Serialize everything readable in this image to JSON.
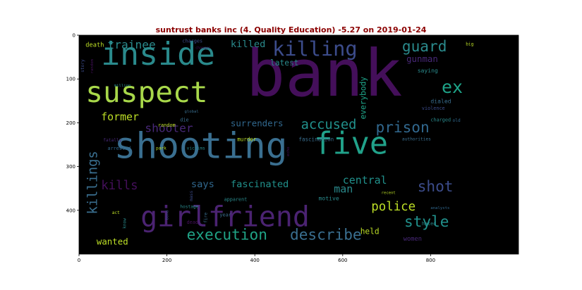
{
  "chart_data": {
    "type": "wordcloud",
    "title": "suntrust banks inc (4. Quality Education) -5.27 on 2019-01-24",
    "x_ticks": [
      "0",
      "200",
      "400",
      "600",
      "800"
    ],
    "y_ticks": [
      "0",
      "100",
      "200",
      "300",
      "400"
    ],
    "xlim": [
      0,
      1000
    ],
    "ylim": [
      500,
      0
    ],
    "words": [
      {
        "text": "bank",
        "x": 380,
        "y": 20,
        "size": 148,
        "color": "#440f5a"
      },
      {
        "text": "shooting",
        "x": 80,
        "y": 215,
        "size": 82,
        "color": "#3a6f90"
      },
      {
        "text": "inside",
        "x": 50,
        "y": 10,
        "size": 72,
        "color": "#2a8a8c"
      },
      {
        "text": "suspect",
        "x": 15,
        "y": 100,
        "size": 66,
        "color": "#a8d84a"
      },
      {
        "text": "girlfriend",
        "x": 140,
        "y": 385,
        "size": 64,
        "color": "#4b2372"
      },
      {
        "text": "five",
        "x": 535,
        "y": 215,
        "size": 70,
        "color": "#21a28a"
      },
      {
        "text": "killing",
        "x": 440,
        "y": 10,
        "size": 46,
        "color": "#3c4c8b"
      },
      {
        "text": "execution",
        "x": 245,
        "y": 440,
        "size": 34,
        "color": "#20a386"
      },
      {
        "text": "describe",
        "x": 480,
        "y": 440,
        "size": 34,
        "color": "#3a6f90"
      },
      {
        "text": "guard",
        "x": 735,
        "y": 10,
        "size": 34,
        "color": "#2a8a8c"
      },
      {
        "text": "ex",
        "x": 825,
        "y": 100,
        "size": 40,
        "color": "#1ea388"
      },
      {
        "text": "prison",
        "x": 675,
        "y": 195,
        "size": 34,
        "color": "#31688e"
      },
      {
        "text": "accused",
        "x": 505,
        "y": 190,
        "size": 30,
        "color": "#21918c"
      },
      {
        "text": "killings",
        "x": 20,
        "y": 265,
        "size": 30,
        "color": "#3a6f90",
        "rotate": true
      },
      {
        "text": "shot",
        "x": 770,
        "y": 330,
        "size": 34,
        "color": "#3c4c8b"
      },
      {
        "text": "style",
        "x": 740,
        "y": 410,
        "size": 34,
        "color": "#21918c"
      },
      {
        "text": "police",
        "x": 665,
        "y": 378,
        "size": 28,
        "color": "#bddf26"
      },
      {
        "text": "trainee",
        "x": 65,
        "y": 10,
        "size": 26,
        "color": "#2a8a8c"
      },
      {
        "text": "former",
        "x": 50,
        "y": 175,
        "size": 24,
        "color": "#bddf26"
      },
      {
        "text": "shooter",
        "x": 150,
        "y": 200,
        "size": 26,
        "color": "#482878"
      },
      {
        "text": "kills",
        "x": 50,
        "y": 330,
        "size": 28,
        "color": "#440f5a"
      },
      {
        "text": "central",
        "x": 600,
        "y": 320,
        "size": 24,
        "color": "#21918c"
      },
      {
        "text": "man",
        "x": 580,
        "y": 340,
        "size": 24,
        "color": "#2a8a8c"
      },
      {
        "text": "says",
        "x": 255,
        "y": 330,
        "size": 22,
        "color": "#31688e"
      },
      {
        "text": "fascinated",
        "x": 345,
        "y": 330,
        "size": 22,
        "color": "#21918c"
      },
      {
        "text": "surrenders",
        "x": 345,
        "y": 192,
        "size": 20,
        "color": "#31688e"
      },
      {
        "text": "killed",
        "x": 345,
        "y": 10,
        "size": 22,
        "color": "#2a8a8c"
      },
      {
        "text": "gunman",
        "x": 745,
        "y": 45,
        "size": 20,
        "color": "#482878"
      },
      {
        "text": "everybody",
        "x": 640,
        "y": 95,
        "size": 18,
        "color": "#1ea388",
        "rotate": true
      },
      {
        "text": "wanted",
        "x": 40,
        "y": 462,
        "size": 20,
        "color": "#bddf26"
      },
      {
        "text": "held",
        "x": 640,
        "y": 440,
        "size": 18,
        "color": "#bddf26"
      },
      {
        "text": "latest",
        "x": 435,
        "y": 55,
        "size": 18,
        "color": "#2a8a8c"
      },
      {
        "text": "women",
        "x": 738,
        "y": 458,
        "size": 14,
        "color": "#482878"
      },
      {
        "text": "death",
        "x": 15,
        "y": 15,
        "size": 14,
        "color": "#bddf26"
      },
      {
        "text": "saying",
        "x": 770,
        "y": 75,
        "size": 13,
        "color": "#2a8a8c"
      },
      {
        "text": "dialed",
        "x": 800,
        "y": 145,
        "size": 13,
        "color": "#3a6f90"
      },
      {
        "text": "violence",
        "x": 780,
        "y": 162,
        "size": 11,
        "color": "#3c4c8b"
      },
      {
        "text": "charged",
        "x": 800,
        "y": 188,
        "size": 11,
        "color": "#2a8a8c"
      },
      {
        "text": "authorities",
        "x": 735,
        "y": 232,
        "size": 10,
        "color": "#3a6f90"
      },
      {
        "text": "fascination",
        "x": 500,
        "y": 232,
        "size": 12,
        "color": "#3a6f90"
      },
      {
        "text": "motive",
        "x": 545,
        "y": 367,
        "size": 13,
        "color": "#2a8a8c"
      },
      {
        "text": "apparent",
        "x": 330,
        "y": 370,
        "size": 11,
        "color": "#2a8a8c"
      },
      {
        "text": "murder",
        "x": 360,
        "y": 232,
        "size": 12,
        "color": "#bddf26"
      },
      {
        "text": "die",
        "x": 230,
        "y": 188,
        "size": 11,
        "color": "#3a6f90"
      },
      {
        "text": "random",
        "x": 180,
        "y": 200,
        "size": 11,
        "color": "#bddf26"
      },
      {
        "text": "gunned",
        "x": 480,
        "y": 58,
        "size": 11,
        "color": "#440f5a"
      },
      {
        "text": "charges",
        "x": 235,
        "y": 8,
        "size": 11,
        "color": "#3c4c8b"
      },
      {
        "text": "changes",
        "x": 265,
        "y": 25,
        "size": 8,
        "color": "#440f5a"
      },
      {
        "text": "big",
        "x": 880,
        "y": 15,
        "size": 10,
        "color": "#bddf26"
      },
      {
        "text": "old",
        "x": 850,
        "y": 190,
        "size": 10,
        "color": "#31688e"
      },
      {
        "text": "million",
        "x": 80,
        "y": 110,
        "size": 9,
        "color": "#2a8a8c"
      },
      {
        "text": "global",
        "x": 240,
        "y": 170,
        "size": 9,
        "color": "#3a6f90"
      },
      {
        "text": "fatally",
        "x": 55,
        "y": 235,
        "size": 10,
        "color": "#482878"
      },
      {
        "text": "arrested",
        "x": 65,
        "y": 253,
        "size": 11,
        "color": "#31688e"
      },
      {
        "text": "park",
        "x": 175,
        "y": 253,
        "size": 10,
        "color": "#bddf26"
      },
      {
        "text": "victims",
        "x": 245,
        "y": 253,
        "size": 10,
        "color": "#2a8a8c"
      },
      {
        "text": "hostage",
        "x": 230,
        "y": 387,
        "size": 10,
        "color": "#2a8a8c"
      },
      {
        "text": "year",
        "x": 320,
        "y": 405,
        "size": 11,
        "color": "#3a6f90"
      },
      {
        "text": "dead",
        "x": 245,
        "y": 422,
        "size": 11,
        "color": "#440f5a"
      },
      {
        "text": "act",
        "x": 75,
        "y": 400,
        "size": 10,
        "color": "#bddf26"
      },
      {
        "text": "know",
        "x": 100,
        "y": 418,
        "size": 10,
        "color": "#2a8a8c",
        "rotate": true
      },
      {
        "text": "recent",
        "x": 688,
        "y": 355,
        "size": 9,
        "color": "#bddf26"
      },
      {
        "text": "analysts",
        "x": 800,
        "y": 390,
        "size": 9,
        "color": "#31688e"
      },
      {
        "text": "hated",
        "x": 780,
        "y": 425,
        "size": 11,
        "color": "#2a8a8c"
      },
      {
        "text": "story",
        "x": 5,
        "y": 55,
        "size": 10,
        "color": "#3c4c8b",
        "rotate": true
      },
      {
        "text": "random",
        "x": 27,
        "y": 55,
        "size": 9,
        "color": "#440f5a",
        "rotate": true
      },
      {
        "text": "mass",
        "x": 252,
        "y": 355,
        "size": 10,
        "color": "#3c4c8b",
        "rotate": true
      },
      {
        "text": "fire",
        "x": 285,
        "y": 405,
        "size": 10,
        "color": "#3a6f90",
        "rotate": true
      },
      {
        "text": "bond",
        "x": 198,
        "y": 400,
        "size": 9,
        "color": "#3c4c8b",
        "rotate": true
      },
      {
        "text": "echo",
        "x": 473,
        "y": 255,
        "size": 9,
        "color": "#440f5a",
        "rotate": true
      }
    ]
  }
}
